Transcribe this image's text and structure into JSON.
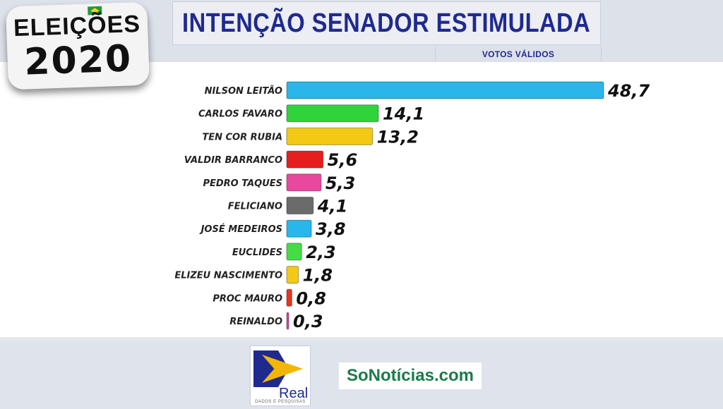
{
  "header": {
    "title": "INTENÇÃO SENADOR ESTIMULADA",
    "subtitle": "VOTOS VÁLIDOS"
  },
  "badge": {
    "line1": "ELEIÇÕES",
    "line2": "2020"
  },
  "footer": {
    "real_name": "Real",
    "real_tagline": "DADOS E PESQUISAS",
    "sonoticias": "SoNotícias.com"
  },
  "chart_data": {
    "type": "bar",
    "orientation": "horizontal",
    "title": "INTENÇÃO SENADOR ESTIMULADA",
    "subtitle": "VOTOS VÁLIDOS",
    "categories": [
      "NILSON LEITÃO",
      "CARLOS FAVARO",
      "TEN COR RUBIA",
      "VALDIR BARRANCO",
      "PEDRO TAQUES",
      "FELICIANO",
      "JOSÉ MEDEIROS",
      "EUCLIDES",
      "ELIZEU NASCIMENTO",
      "PROC MAURO",
      "REINALDO"
    ],
    "values": [
      48.7,
      14.1,
      13.2,
      5.6,
      5.3,
      4.1,
      3.8,
      2.3,
      1.8,
      0.8,
      0.3
    ],
    "value_labels": [
      "48,7",
      "14,1",
      "13,2",
      "5,6",
      "5,3",
      "4,1",
      "3,8",
      "2,3",
      "1,8",
      "0,8",
      "0,3"
    ],
    "colors": [
      "#29b6ea",
      "#2fd43a",
      "#f4c916",
      "#e81e1e",
      "#e8489e",
      "#6b6b6b",
      "#29b6ea",
      "#46dc46",
      "#f4c916",
      "#e8361e",
      "#d04a9a"
    ],
    "xlim": [
      0,
      48.7
    ],
    "grid": false,
    "legend": "none"
  }
}
